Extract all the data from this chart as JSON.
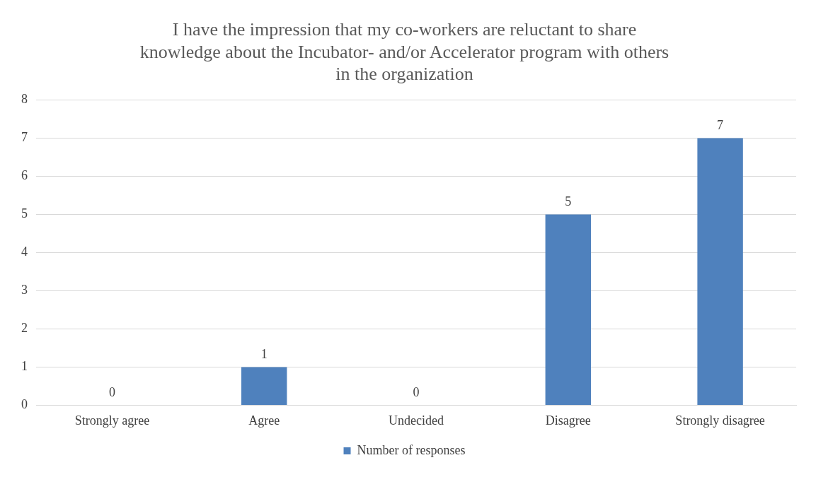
{
  "chart_data": {
    "type": "bar",
    "title": "I have the impression that my co-workers are reluctant to share knowledge about the Incubator- and/or Accelerator program with others in the organization",
    "categories": [
      "Strongly agree",
      "Agree",
      "Undecided",
      "Disagree",
      "Strongly disagree"
    ],
    "series": [
      {
        "name": "Number of responses",
        "color": "#4f81bd",
        "values": [
          0,
          1,
          0,
          5,
          7
        ]
      }
    ],
    "ylim": [
      0,
      8
    ],
    "yticks": [
      0,
      1,
      2,
      3,
      4,
      5,
      6,
      7,
      8
    ],
    "grid": "y",
    "legend": "bottom",
    "data_labels": true
  }
}
